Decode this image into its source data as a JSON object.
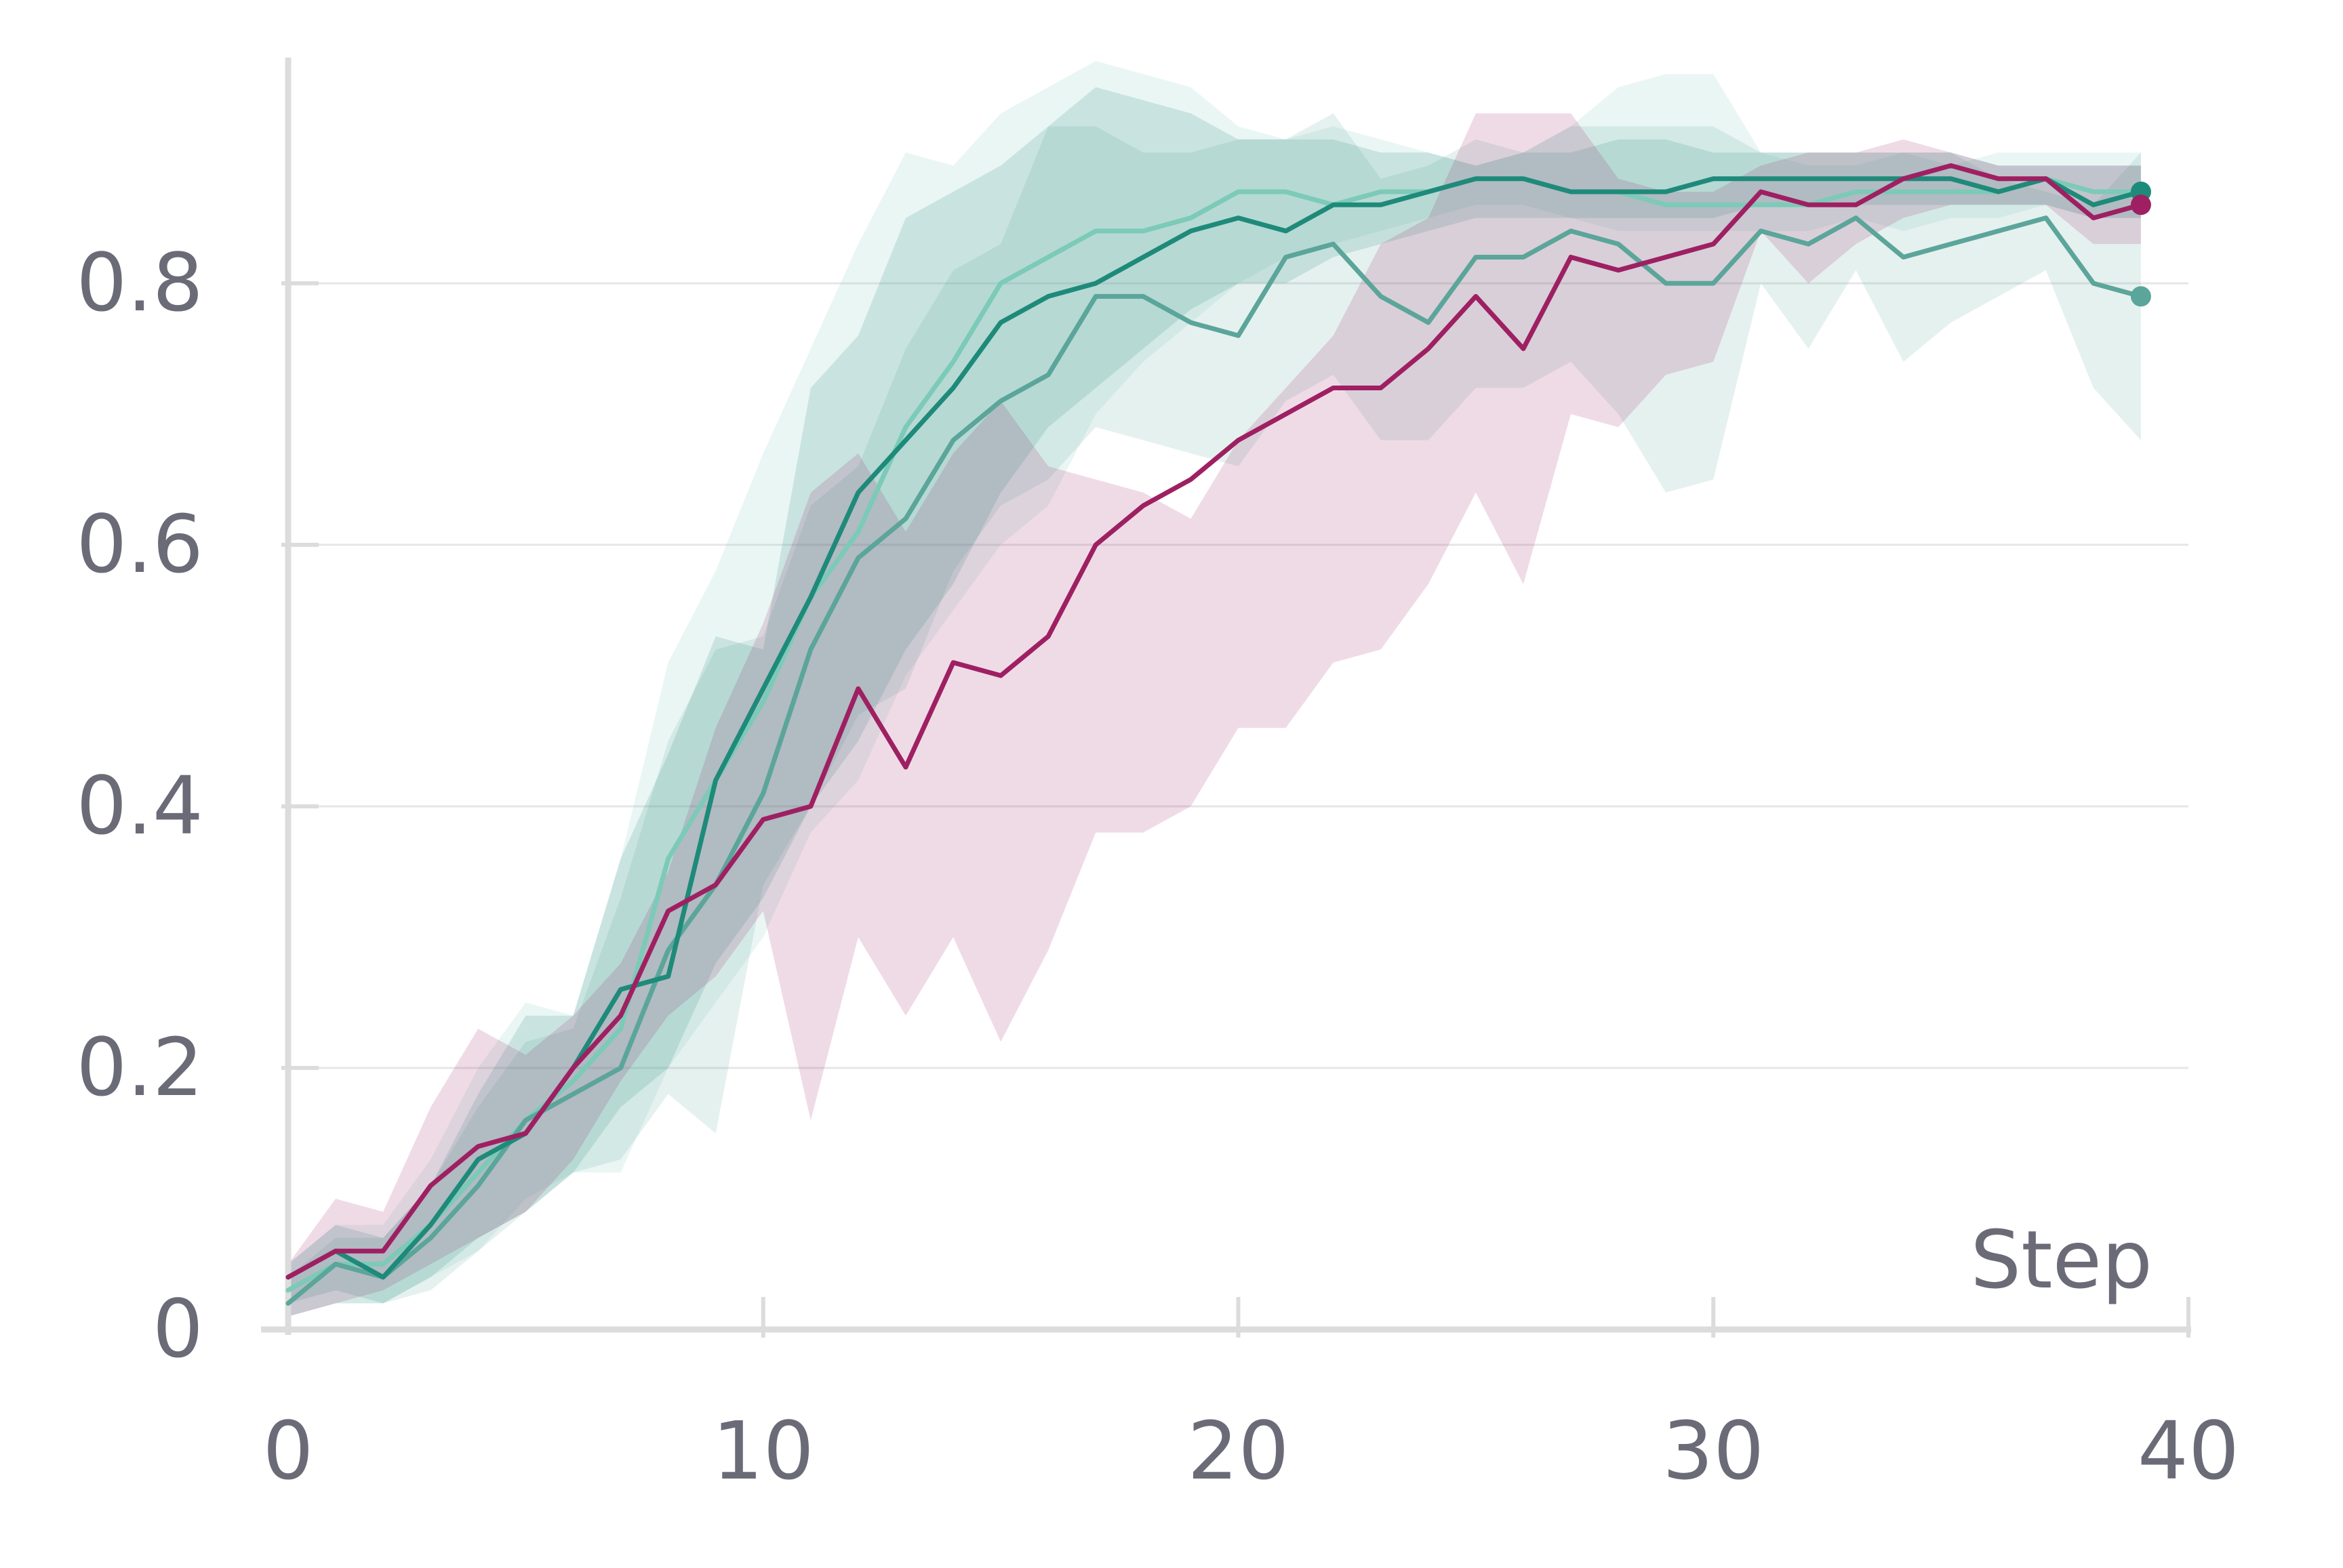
{
  "chart_data": {
    "type": "line",
    "xlabel": "Step",
    "ylabel": "",
    "xlim": [
      0,
      40
    ],
    "ylim": [
      0,
      0.97
    ],
    "xticks": [
      0,
      10,
      20,
      30,
      40
    ],
    "xtick_labels": [
      "0",
      "10",
      "20",
      "30",
      "40"
    ],
    "yticks": [
      0,
      0.2,
      0.4,
      0.6,
      0.8
    ],
    "ytick_labels": [
      "0",
      "0.2",
      "0.4",
      "0.6",
      "0.8"
    ],
    "grid": "horizontal",
    "legend": "none",
    "x": [
      0,
      1,
      2,
      3,
      4,
      5,
      6,
      7,
      8,
      9,
      10,
      11,
      12,
      13,
      14,
      15,
      16,
      17,
      18,
      19,
      20,
      21,
      22,
      23,
      24,
      25,
      26,
      27,
      28,
      29,
      30,
      31,
      32,
      33,
      34,
      35,
      36,
      37,
      38,
      39
    ],
    "series": [
      {
        "color": "#7ccab8",
        "values": [
          0.03,
          0.05,
          0.05,
          0.08,
          0.12,
          0.16,
          0.19,
          0.23,
          0.36,
          0.42,
          0.48,
          0.56,
          0.61,
          0.69,
          0.74,
          0.8,
          0.82,
          0.84,
          0.84,
          0.85,
          0.87,
          0.87,
          0.86,
          0.87,
          0.87,
          0.88,
          0.88,
          0.87,
          0.87,
          0.86,
          0.86,
          0.86,
          0.86,
          0.87,
          0.87,
          0.87,
          0.87,
          0.88,
          0.87,
          0.87
        ],
        "band_upper": [
          0.05,
          0.08,
          0.08,
          0.13,
          0.2,
          0.25,
          0.24,
          0.36,
          0.51,
          0.58,
          0.67,
          0.75,
          0.83,
          0.9,
          0.89,
          0.93,
          0.95,
          0.97,
          0.96,
          0.95,
          0.92,
          0.91,
          0.92,
          0.91,
          0.9,
          0.89,
          0.9,
          0.92,
          0.95,
          0.96,
          0.96,
          0.9,
          0.89,
          0.89,
          0.9,
          0.89,
          0.9,
          0.9,
          0.9,
          0.9
        ],
        "band_lower": [
          0.01,
          0.02,
          0.02,
          0.04,
          0.06,
          0.1,
          0.12,
          0.12,
          0.2,
          0.25,
          0.3,
          0.38,
          0.42,
          0.5,
          0.55,
          0.6,
          0.63,
          0.7,
          0.74,
          0.77,
          0.8,
          0.82,
          0.83,
          0.84,
          0.85,
          0.86,
          0.86,
          0.85,
          0.84,
          0.84,
          0.84,
          0.84,
          0.84,
          0.85,
          0.84,
          0.85,
          0.85,
          0.86,
          0.85,
          0.85
        ]
      },
      {
        "color": "#5ba59a",
        "values": [
          0.02,
          0.05,
          0.04,
          0.07,
          0.11,
          0.16,
          0.18,
          0.2,
          0.29,
          0.34,
          0.41,
          0.52,
          0.59,
          0.62,
          0.68,
          0.71,
          0.73,
          0.79,
          0.79,
          0.77,
          0.76,
          0.82,
          0.83,
          0.79,
          0.77,
          0.82,
          0.82,
          0.84,
          0.83,
          0.8,
          0.8,
          0.84,
          0.83,
          0.85,
          0.82,
          0.83,
          0.84,
          0.85,
          0.8,
          0.79
        ],
        "band_upper": [
          0.04,
          0.07,
          0.07,
          0.11,
          0.17,
          0.22,
          0.23,
          0.33,
          0.45,
          0.52,
          0.53,
          0.63,
          0.66,
          0.75,
          0.81,
          0.83,
          0.92,
          0.92,
          0.9,
          0.9,
          0.91,
          0.91,
          0.93,
          0.88,
          0.89,
          0.91,
          0.9,
          0.92,
          0.92,
          0.92,
          0.92,
          0.9,
          0.9,
          0.9,
          0.9,
          0.9,
          0.88,
          0.87,
          0.86,
          0.9
        ],
        "band_lower": [
          0.01,
          0.02,
          0.02,
          0.03,
          0.06,
          0.09,
          0.12,
          0.13,
          0.18,
          0.15,
          0.34,
          0.4,
          0.47,
          0.49,
          0.58,
          0.63,
          0.65,
          0.69,
          0.68,
          0.67,
          0.66,
          0.71,
          0.73,
          0.68,
          0.68,
          0.72,
          0.72,
          0.74,
          0.7,
          0.64,
          0.65,
          0.8,
          0.75,
          0.81,
          0.74,
          0.77,
          0.79,
          0.81,
          0.72,
          0.68
        ]
      },
      {
        "color": "#1e8a7a",
        "values": [
          0.04,
          0.06,
          0.04,
          0.08,
          0.13,
          0.15,
          0.2,
          0.26,
          0.27,
          0.42,
          0.49,
          0.56,
          0.64,
          0.68,
          0.72,
          0.77,
          0.79,
          0.8,
          0.82,
          0.84,
          0.85,
          0.84,
          0.86,
          0.86,
          0.87,
          0.88,
          0.88,
          0.87,
          0.87,
          0.87,
          0.88,
          0.88,
          0.88,
          0.88,
          0.88,
          0.88,
          0.87,
          0.88,
          0.86,
          0.87
        ],
        "band_upper": [
          0.05,
          0.08,
          0.07,
          0.11,
          0.18,
          0.24,
          0.24,
          0.36,
          0.44,
          0.53,
          0.52,
          0.72,
          0.76,
          0.85,
          0.87,
          0.89,
          0.92,
          0.95,
          0.94,
          0.93,
          0.91,
          0.91,
          0.91,
          0.9,
          0.9,
          0.89,
          0.9,
          0.9,
          0.91,
          0.91,
          0.9,
          0.9,
          0.9,
          0.9,
          0.9,
          0.9,
          0.89,
          0.89,
          0.89,
          0.89
        ],
        "band_lower": [
          0.02,
          0.03,
          0.02,
          0.04,
          0.07,
          0.09,
          0.12,
          0.17,
          0.2,
          0.28,
          0.33,
          0.4,
          0.45,
          0.52,
          0.57,
          0.64,
          0.69,
          0.72,
          0.75,
          0.78,
          0.8,
          0.8,
          0.82,
          0.83,
          0.84,
          0.85,
          0.85,
          0.85,
          0.85,
          0.85,
          0.85,
          0.86,
          0.86,
          0.86,
          0.86,
          0.86,
          0.86,
          0.86,
          0.85,
          0.85
        ]
      },
      {
        "color": "#9e2062",
        "values": [
          0.04,
          0.06,
          0.06,
          0.11,
          0.14,
          0.15,
          0.2,
          0.24,
          0.32,
          0.34,
          0.39,
          0.4,
          0.49,
          0.43,
          0.51,
          0.5,
          0.53,
          0.6,
          0.63,
          0.65,
          0.68,
          0.7,
          0.72,
          0.72,
          0.75,
          0.79,
          0.75,
          0.82,
          0.81,
          0.82,
          0.83,
          0.87,
          0.86,
          0.86,
          0.88,
          0.89,
          0.88,
          0.88,
          0.85,
          0.86
        ],
        "band_upper": [
          0.05,
          0.1,
          0.09,
          0.17,
          0.23,
          0.21,
          0.24,
          0.28,
          0.35,
          0.46,
          0.54,
          0.64,
          0.67,
          0.61,
          0.67,
          0.71,
          0.66,
          0.65,
          0.64,
          0.62,
          0.68,
          0.72,
          0.76,
          0.83,
          0.85,
          0.93,
          0.93,
          0.93,
          0.88,
          0.87,
          0.87,
          0.89,
          0.9,
          0.9,
          0.91,
          0.9,
          0.89,
          0.89,
          0.89,
          0.89
        ],
        "band_lower": [
          0.01,
          0.02,
          0.03,
          0.05,
          0.07,
          0.09,
          0.13,
          0.19,
          0.24,
          0.27,
          0.32,
          0.16,
          0.3,
          0.24,
          0.3,
          0.22,
          0.29,
          0.38,
          0.38,
          0.4,
          0.46,
          0.46,
          0.51,
          0.52,
          0.57,
          0.64,
          0.57,
          0.7,
          0.69,
          0.73,
          0.74,
          0.84,
          0.8,
          0.83,
          0.85,
          0.86,
          0.86,
          0.86,
          0.83,
          0.83
        ]
      }
    ]
  }
}
